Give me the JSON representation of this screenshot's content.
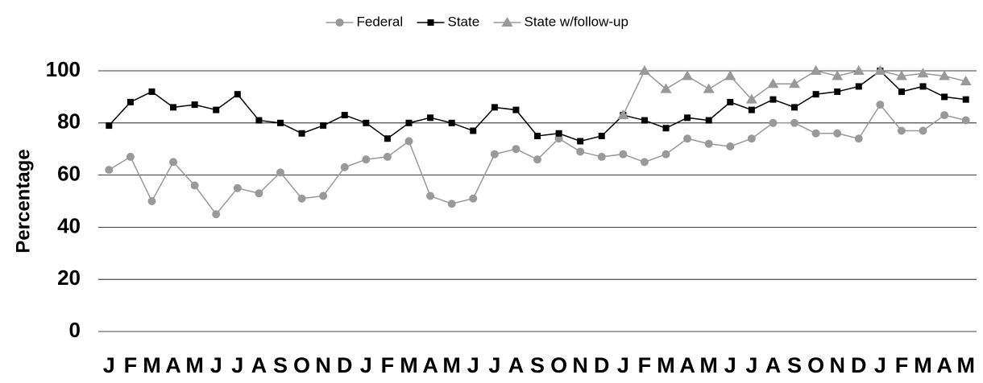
{
  "chart_data": {
    "type": "line",
    "y_label": "Percentage",
    "categories": [
      "J",
      "F",
      "M",
      "A",
      "M",
      "J",
      "J",
      "A",
      "S",
      "O",
      "N",
      "D",
      "J",
      "F",
      "M",
      "A",
      "M",
      "J",
      "J",
      "A",
      "S",
      "O",
      "N",
      "D",
      "J",
      "F",
      "M",
      "A",
      "M",
      "J",
      "J",
      "A",
      "S",
      "O",
      "N",
      "D",
      "J",
      "F",
      "M",
      "A",
      "M"
    ],
    "series": [
      {
        "name": "Federal",
        "color": "#999999",
        "marker": "circle",
        "values": [
          62,
          67,
          50,
          65,
          56,
          45,
          55,
          53,
          61,
          51,
          52,
          63,
          66,
          67,
          73,
          52,
          49,
          51,
          68,
          70,
          66,
          74,
          69,
          67,
          68,
          65,
          68,
          74,
          72,
          71,
          74,
          80,
          80,
          76,
          76,
          74,
          87,
          77,
          77,
          83,
          81
        ]
      },
      {
        "name": "State",
        "color": "#000000",
        "marker": "square",
        "values": [
          79,
          88,
          92,
          86,
          87,
          85,
          91,
          81,
          80,
          76,
          79,
          83,
          80,
          74,
          80,
          82,
          80,
          77,
          86,
          85,
          75,
          76,
          73,
          75,
          83,
          81,
          78,
          82,
          81,
          88,
          85,
          89,
          86,
          91,
          92,
          94,
          100,
          92,
          94,
          90,
          89
        ]
      },
      {
        "name": "State w/follow-up",
        "color": "#999999",
        "marker": "triangle",
        "values": [
          null,
          null,
          null,
          null,
          null,
          null,
          null,
          null,
          null,
          null,
          null,
          null,
          null,
          null,
          null,
          null,
          null,
          null,
          null,
          null,
          null,
          null,
          null,
          null,
          83,
          100,
          93,
          98,
          93,
          98,
          89,
          95,
          95,
          100,
          98,
          100,
          100,
          98,
          99,
          98,
          96
        ]
      }
    ],
    "ylim": [
      0,
      100
    ],
    "yticks": [
      0,
      20,
      40,
      60,
      80,
      100
    ],
    "grid": true,
    "legend": "top"
  }
}
